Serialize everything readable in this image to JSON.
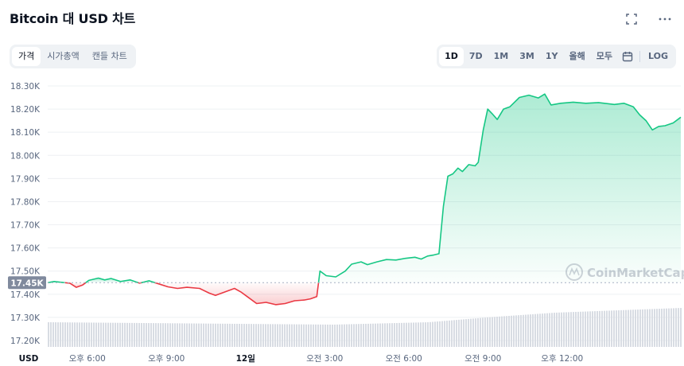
{
  "header": {
    "title": "Bitcoin 대 USD 차트"
  },
  "toolbar": {
    "fullscreen_icon": "fullscreen-icon",
    "more_icon": "more-icon",
    "left_tabs": [
      {
        "label": "가격",
        "active": true
      },
      {
        "label": "시가총액",
        "active": false
      },
      {
        "label": "캔들 차트",
        "active": false
      }
    ],
    "range_tabs": [
      {
        "label": "1D",
        "active": true
      },
      {
        "label": "7D",
        "active": false
      },
      {
        "label": "1M",
        "active": false
      },
      {
        "label": "3M",
        "active": false
      },
      {
        "label": "1Y",
        "active": false
      },
      {
        "label": "올해",
        "active": false
      },
      {
        "label": "모두",
        "active": false
      }
    ],
    "calendar_icon": "calendar-icon",
    "log_label": "LOG"
  },
  "watermark": "CoinMarketCap",
  "chart_data": {
    "type": "line",
    "currency_label": "USD",
    "y_ticks": [
      "18.30K",
      "18.20K",
      "18.10K",
      "18.00K",
      "17.90K",
      "17.80K",
      "17.70K",
      "17.60K",
      "17.50K",
      "17.40K",
      "17.30K",
      "17.20K"
    ],
    "ylim": [
      17200,
      18300
    ],
    "reference_value": 17450,
    "reference_label": "17.45K",
    "x_ticks": [
      {
        "label": "오후 6:00",
        "t": 0.0625,
        "bold": false
      },
      {
        "label": "오후 9:00",
        "t": 0.1875,
        "bold": false
      },
      {
        "label": "12일",
        "t": 0.3125,
        "bold": true
      },
      {
        "label": "오전 3:00",
        "t": 0.4375,
        "bold": false
      },
      {
        "label": "오전 6:00",
        "t": 0.5625,
        "bold": false
      },
      {
        "label": "오전 9:00",
        "t": 0.6875,
        "bold": false
      },
      {
        "label": "오후 12:00",
        "t": 0.8125,
        "bold": false
      }
    ],
    "up_color": "#16c784",
    "down_color": "#ea3943",
    "price_series": [
      [
        0.0,
        17450
      ],
      [
        0.01,
        17455
      ],
      [
        0.02,
        17452
      ],
      [
        0.035,
        17448
      ],
      [
        0.045,
        17430
      ],
      [
        0.055,
        17440
      ],
      [
        0.065,
        17460
      ],
      [
        0.08,
        17470
      ],
      [
        0.09,
        17462
      ],
      [
        0.1,
        17468
      ],
      [
        0.115,
        17455
      ],
      [
        0.13,
        17462
      ],
      [
        0.145,
        17448
      ],
      [
        0.16,
        17458
      ],
      [
        0.175,
        17445
      ],
      [
        0.19,
        17432
      ],
      [
        0.205,
        17425
      ],
      [
        0.22,
        17430
      ],
      [
        0.24,
        17425
      ],
      [
        0.255,
        17405
      ],
      [
        0.265,
        17395
      ],
      [
        0.28,
        17410
      ],
      [
        0.295,
        17425
      ],
      [
        0.305,
        17410
      ],
      [
        0.315,
        17390
      ],
      [
        0.33,
        17360
      ],
      [
        0.345,
        17365
      ],
      [
        0.36,
        17355
      ],
      [
        0.375,
        17360
      ],
      [
        0.39,
        17372
      ],
      [
        0.405,
        17375
      ],
      [
        0.415,
        17380
      ],
      [
        0.425,
        17390
      ],
      [
        0.43,
        17500
      ],
      [
        0.44,
        17480
      ],
      [
        0.455,
        17475
      ],
      [
        0.47,
        17500
      ],
      [
        0.48,
        17530
      ],
      [
        0.495,
        17540
      ],
      [
        0.505,
        17528
      ],
      [
        0.52,
        17540
      ],
      [
        0.535,
        17550
      ],
      [
        0.55,
        17548
      ],
      [
        0.565,
        17555
      ],
      [
        0.58,
        17560
      ],
      [
        0.59,
        17552
      ],
      [
        0.6,
        17565
      ],
      [
        0.61,
        17570
      ],
      [
        0.618,
        17575
      ],
      [
        0.625,
        17780
      ],
      [
        0.632,
        17910
      ],
      [
        0.64,
        17920
      ],
      [
        0.648,
        17945
      ],
      [
        0.655,
        17930
      ],
      [
        0.665,
        17960
      ],
      [
        0.675,
        17955
      ],
      [
        0.68,
        17970
      ],
      [
        0.688,
        18110
      ],
      [
        0.695,
        18200
      ],
      [
        0.702,
        18180
      ],
      [
        0.71,
        18155
      ],
      [
        0.72,
        18200
      ],
      [
        0.73,
        18210
      ],
      [
        0.745,
        18250
      ],
      [
        0.76,
        18260
      ],
      [
        0.775,
        18248
      ],
      [
        0.785,
        18265
      ],
      [
        0.795,
        18218
      ],
      [
        0.81,
        18225
      ],
      [
        0.83,
        18230
      ],
      [
        0.85,
        18225
      ],
      [
        0.87,
        18228
      ],
      [
        0.895,
        18220
      ],
      [
        0.91,
        18225
      ],
      [
        0.925,
        18210
      ],
      [
        0.935,
        18175
      ],
      [
        0.945,
        18150
      ],
      [
        0.955,
        18110
      ],
      [
        0.965,
        18125
      ],
      [
        0.975,
        18128
      ],
      [
        0.988,
        18140
      ],
      [
        1.0,
        18165
      ]
    ],
    "volume_profile": [
      [
        0.0,
        0.62
      ],
      [
        0.3,
        0.58
      ],
      [
        0.45,
        0.56
      ],
      [
        0.6,
        0.62
      ],
      [
        0.7,
        0.75
      ],
      [
        0.8,
        0.86
      ],
      [
        0.9,
        0.92
      ],
      [
        1.0,
        0.98
      ]
    ]
  }
}
